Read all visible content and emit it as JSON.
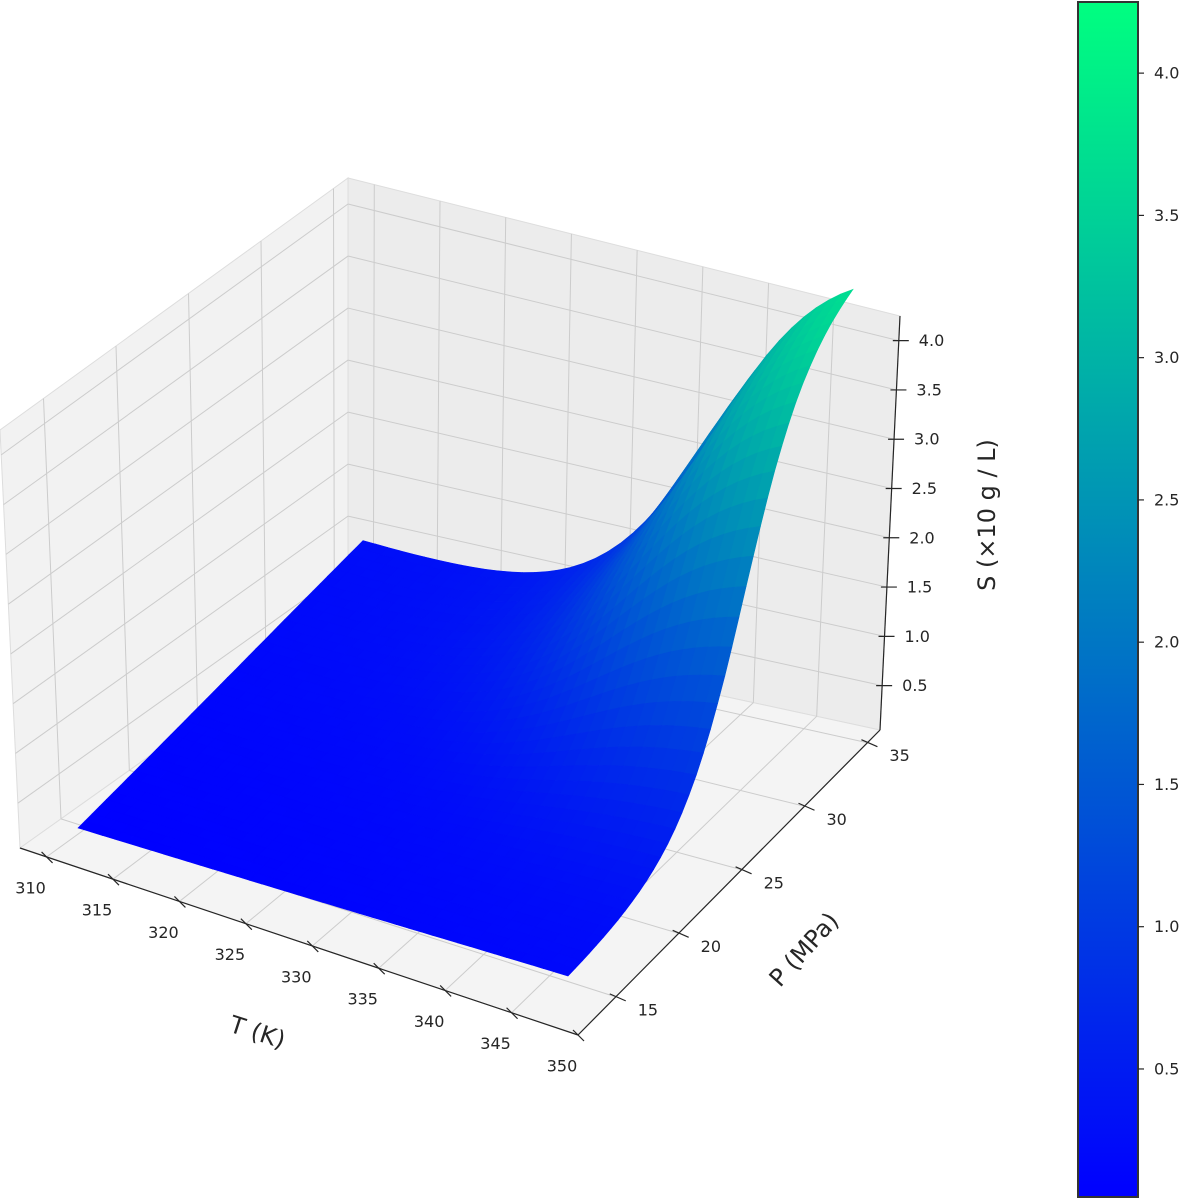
{
  "chart_data": {
    "type": "surface",
    "title": "",
    "xlabel": "T (K)",
    "ylabel": "P (MPa)",
    "zlabel": "S (×10 g / L)",
    "x_ticks": [
      310,
      315,
      320,
      325,
      330,
      335,
      340,
      345,
      350
    ],
    "y_ticks": [
      15,
      20,
      25,
      30,
      35
    ],
    "z_ticks": [
      "0.5",
      "1.0",
      "1.5",
      "2.0",
      "2.5",
      "3.0",
      "3.5",
      "4.0"
    ],
    "xlim": [
      308,
      350
    ],
    "ylim": [
      12,
      36
    ],
    "zlim": [
      0.05,
      4.25
    ],
    "corner_values": [
      {
        "T": 308,
        "P": 12,
        "S": 0.05
      },
      {
        "T": 308,
        "P": 36,
        "S": 0.3
      },
      {
        "T": 350,
        "P": 12,
        "S": 0.1
      },
      {
        "T": 350,
        "P": 36,
        "S": 4.2
      }
    ],
    "colormap": "winter",
    "colormap_colors": [
      "#0000ff",
      "#00ff80"
    ],
    "grid": true,
    "colorbar": {
      "ticks": [
        "0.5",
        "1.0",
        "1.5",
        "2.0",
        "2.5",
        "3.0",
        "3.5",
        "4.0"
      ],
      "range": [
        0.05,
        4.25
      ],
      "position": "right"
    }
  }
}
